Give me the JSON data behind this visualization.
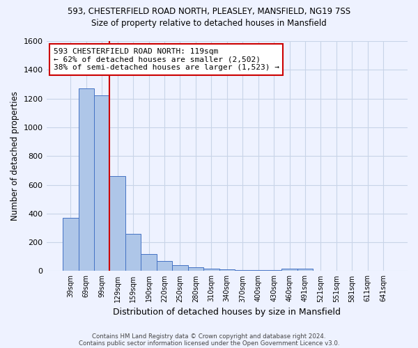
{
  "title1": "593, CHESTERFIELD ROAD NORTH, PLEASLEY, MANSFIELD, NG19 7SS",
  "title2": "Size of property relative to detached houses in Mansfield",
  "xlabel": "Distribution of detached houses by size in Mansfield",
  "ylabel": "Number of detached properties",
  "footnote1": "Contains HM Land Registry data © Crown copyright and database right 2024.",
  "footnote2": "Contains public sector information licensed under the Open Government Licence v3.0.",
  "annotation_line1": "593 CHESTERFIELD ROAD NORTH: 119sqm",
  "annotation_line2": "← 62% of detached houses are smaller (2,502)",
  "annotation_line3": "38% of semi-detached houses are larger (1,523) →",
  "bar_labels": [
    "39sqm",
    "69sqm",
    "99sqm",
    "129sqm",
    "159sqm",
    "190sqm",
    "220sqm",
    "250sqm",
    "280sqm",
    "310sqm",
    "340sqm",
    "370sqm",
    "400sqm",
    "430sqm",
    "460sqm",
    "491sqm",
    "521sqm",
    "551sqm",
    "581sqm",
    "611sqm",
    "641sqm"
  ],
  "bar_values": [
    370,
    1270,
    1220,
    660,
    260,
    120,
    70,
    40,
    25,
    18,
    10,
    8,
    5,
    8,
    18,
    18,
    2,
    2,
    1,
    1,
    2
  ],
  "bar_color": "#aec6e8",
  "bar_edge_color": "#4472c4",
  "vline_x": 2.5,
  "vline_color": "#cc0000",
  "annotation_box_color": "#ffffff",
  "annotation_box_edge": "#cc0000",
  "bg_color": "#eef2ff",
  "grid_color": "#c8d4e8",
  "ylim": [
    0,
    1600
  ],
  "yticks": [
    0,
    200,
    400,
    600,
    800,
    1000,
    1200,
    1400,
    1600
  ]
}
